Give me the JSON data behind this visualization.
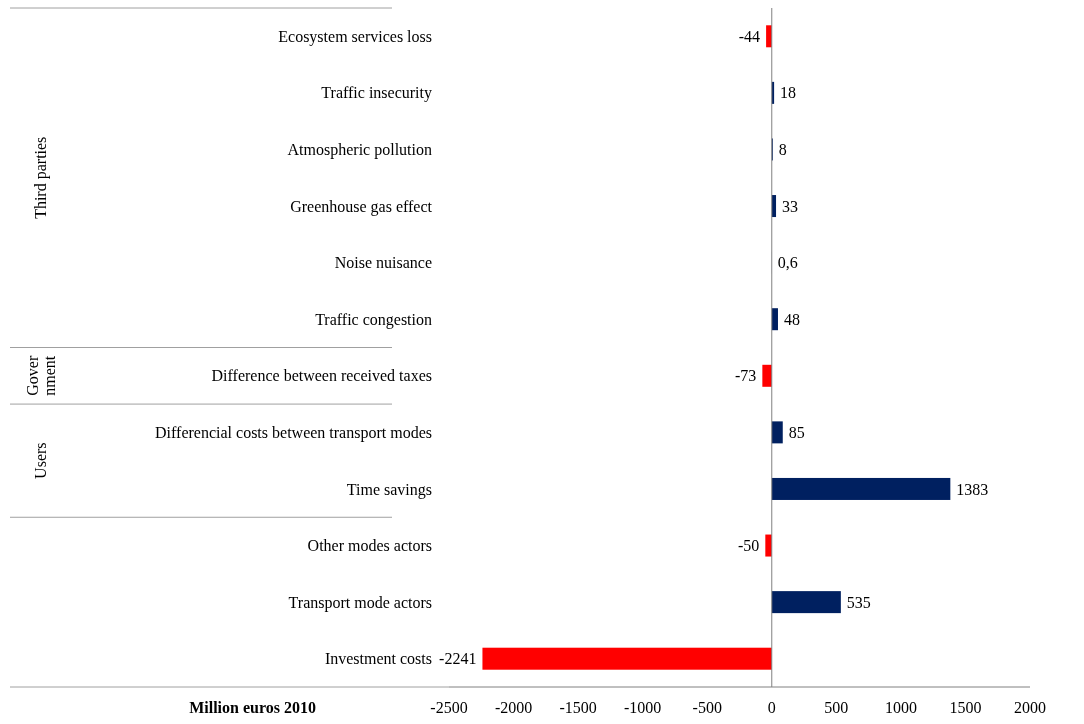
{
  "chart_data": {
    "type": "bar",
    "orientation": "horizontal",
    "xlabel": "Million euros 2010",
    "categories": [
      "Ecosystem services loss",
      "Traffic insecurity",
      "Atmospheric pollution",
      "Greenhouse gas effect",
      "Noise nuisance",
      "Traffic congestion",
      "Difference between received taxes",
      "Differencial costs between transport modes",
      "Time savings",
      "Other modes actors",
      "Transport mode actors",
      "Investment costs"
    ],
    "values": [
      -44,
      18,
      8,
      33,
      0.6,
      48,
      -73,
      85,
      1383,
      -50,
      535,
      -2241
    ],
    "colors": [
      "#ff0000",
      "#002060",
      "#002060",
      "#002060",
      "#002060",
      "#002060",
      "#ff0000",
      "#002060",
      "#002060",
      "#ff0000",
      "#002060",
      "#ff0000"
    ],
    "value_labels": [
      "-44",
      "18",
      "8",
      "33",
      "0,6",
      "48",
      "-73",
      "85",
      "1383",
      "-50",
      "535",
      "-2241"
    ],
    "xlim": [
      -2500,
      2000
    ],
    "xticks": [
      -2500,
      -2000,
      -1500,
      -1000,
      -500,
      0,
      500,
      1000,
      1500,
      2000
    ],
    "annotations": [
      "Third parties",
      "Gover\nnment",
      "Users"
    ]
  }
}
